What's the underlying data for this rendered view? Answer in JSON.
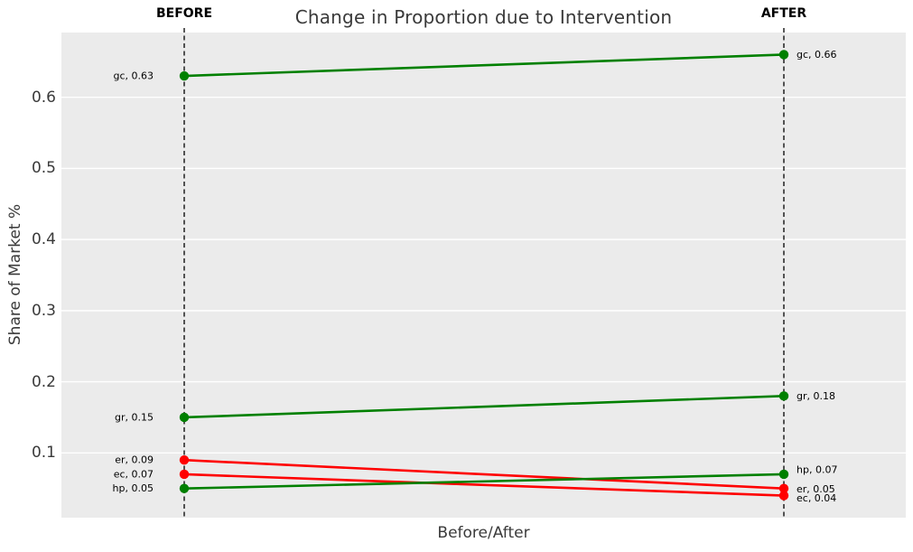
{
  "chart": {
    "title": "Change in Proportion due to Intervention",
    "before_label": "BEFORE",
    "after_label": "AFTER",
    "ylabel": "Share of Market %",
    "xlabel": "Before/After"
  },
  "chart_data": {
    "type": "line",
    "subtype": "slopegraph",
    "title": "Change in Proportion due to Intervention",
    "xlabel": "Before/After",
    "ylabel": "Share of Market %",
    "categories": [
      "BEFORE",
      "AFTER"
    ],
    "series": [
      {
        "name": "gc",
        "values": [
          0.63,
          0.66
        ],
        "direction": "increase",
        "color": "#008000",
        "point_labels": [
          "gc, 0.63",
          "gc, 0.66"
        ]
      },
      {
        "name": "gr",
        "values": [
          0.15,
          0.18
        ],
        "direction": "increase",
        "color": "#008000",
        "point_labels": [
          "gr, 0.15",
          "gr, 0.18"
        ]
      },
      {
        "name": "er",
        "values": [
          0.09,
          0.05
        ],
        "direction": "decrease",
        "color": "#ff0000",
        "point_labels": [
          "er, 0.09",
          "er, 0.05"
        ]
      },
      {
        "name": "ec",
        "values": [
          0.07,
          0.04
        ],
        "direction": "decrease",
        "color": "#ff0000",
        "point_labels": [
          "ec, 0.07",
          "ec, 0.04"
        ]
      },
      {
        "name": "hp",
        "values": [
          0.05,
          0.07
        ],
        "direction": "increase",
        "color": "#008000",
        "point_labels": [
          "hp, 0.05",
          "hp, 0.07"
        ]
      }
    ],
    "yticks": [
      0.1,
      0.2,
      0.3,
      0.4,
      0.5,
      0.6
    ],
    "ylim": [
      0.009,
      0.691
    ],
    "grid": true,
    "legend": false,
    "plot_bg": "#ebebeb",
    "grid_color": "#ffffff",
    "guide_line_color": "#000000",
    "increase_color": "#008000",
    "decrease_color": "#ff0000",
    "text_color": "#3a3a3a",
    "point_label_color": "#000000"
  }
}
